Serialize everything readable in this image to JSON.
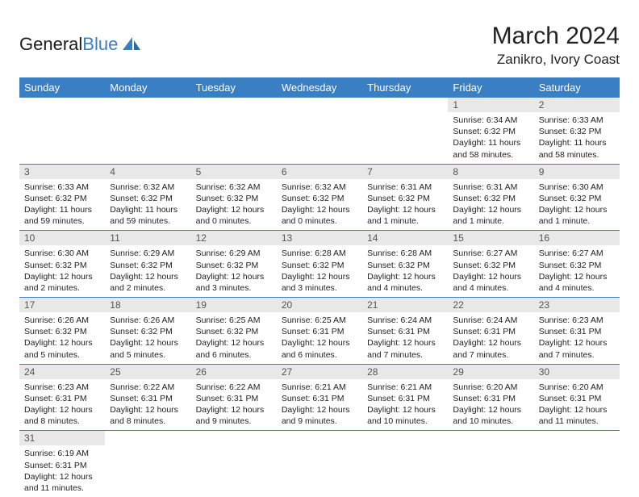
{
  "brand": {
    "part1": "General",
    "part2": "Blue"
  },
  "title": "March 2024",
  "location": "Zanikro, Ivory Coast",
  "colors": {
    "header_bg": "#3a7fc4",
    "header_text": "#ffffff",
    "daynum_bg": "#e8e8e8",
    "daynum_text": "#555555",
    "body_text": "#222222",
    "row_border": "#3a7fc4",
    "page_bg": "#ffffff"
  },
  "weekdays": [
    "Sunday",
    "Monday",
    "Tuesday",
    "Wednesday",
    "Thursday",
    "Friday",
    "Saturday"
  ],
  "first_weekday_index": 5,
  "days": [
    {
      "n": 1,
      "sr": "6:34 AM",
      "ss": "6:32 PM",
      "dl": "11 hours and 58 minutes."
    },
    {
      "n": 2,
      "sr": "6:33 AM",
      "ss": "6:32 PM",
      "dl": "11 hours and 58 minutes."
    },
    {
      "n": 3,
      "sr": "6:33 AM",
      "ss": "6:32 PM",
      "dl": "11 hours and 59 minutes."
    },
    {
      "n": 4,
      "sr": "6:32 AM",
      "ss": "6:32 PM",
      "dl": "11 hours and 59 minutes."
    },
    {
      "n": 5,
      "sr": "6:32 AM",
      "ss": "6:32 PM",
      "dl": "12 hours and 0 minutes."
    },
    {
      "n": 6,
      "sr": "6:32 AM",
      "ss": "6:32 PM",
      "dl": "12 hours and 0 minutes."
    },
    {
      "n": 7,
      "sr": "6:31 AM",
      "ss": "6:32 PM",
      "dl": "12 hours and 1 minute."
    },
    {
      "n": 8,
      "sr": "6:31 AM",
      "ss": "6:32 PM",
      "dl": "12 hours and 1 minute."
    },
    {
      "n": 9,
      "sr": "6:30 AM",
      "ss": "6:32 PM",
      "dl": "12 hours and 1 minute."
    },
    {
      "n": 10,
      "sr": "6:30 AM",
      "ss": "6:32 PM",
      "dl": "12 hours and 2 minutes."
    },
    {
      "n": 11,
      "sr": "6:29 AM",
      "ss": "6:32 PM",
      "dl": "12 hours and 2 minutes."
    },
    {
      "n": 12,
      "sr": "6:29 AM",
      "ss": "6:32 PM",
      "dl": "12 hours and 3 minutes."
    },
    {
      "n": 13,
      "sr": "6:28 AM",
      "ss": "6:32 PM",
      "dl": "12 hours and 3 minutes."
    },
    {
      "n": 14,
      "sr": "6:28 AM",
      "ss": "6:32 PM",
      "dl": "12 hours and 4 minutes."
    },
    {
      "n": 15,
      "sr": "6:27 AM",
      "ss": "6:32 PM",
      "dl": "12 hours and 4 minutes."
    },
    {
      "n": 16,
      "sr": "6:27 AM",
      "ss": "6:32 PM",
      "dl": "12 hours and 4 minutes."
    },
    {
      "n": 17,
      "sr": "6:26 AM",
      "ss": "6:32 PM",
      "dl": "12 hours and 5 minutes."
    },
    {
      "n": 18,
      "sr": "6:26 AM",
      "ss": "6:32 PM",
      "dl": "12 hours and 5 minutes."
    },
    {
      "n": 19,
      "sr": "6:25 AM",
      "ss": "6:32 PM",
      "dl": "12 hours and 6 minutes."
    },
    {
      "n": 20,
      "sr": "6:25 AM",
      "ss": "6:31 PM",
      "dl": "12 hours and 6 minutes."
    },
    {
      "n": 21,
      "sr": "6:24 AM",
      "ss": "6:31 PM",
      "dl": "12 hours and 7 minutes."
    },
    {
      "n": 22,
      "sr": "6:24 AM",
      "ss": "6:31 PM",
      "dl": "12 hours and 7 minutes."
    },
    {
      "n": 23,
      "sr": "6:23 AM",
      "ss": "6:31 PM",
      "dl": "12 hours and 7 minutes."
    },
    {
      "n": 24,
      "sr": "6:23 AM",
      "ss": "6:31 PM",
      "dl": "12 hours and 8 minutes."
    },
    {
      "n": 25,
      "sr": "6:22 AM",
      "ss": "6:31 PM",
      "dl": "12 hours and 8 minutes."
    },
    {
      "n": 26,
      "sr": "6:22 AM",
      "ss": "6:31 PM",
      "dl": "12 hours and 9 minutes."
    },
    {
      "n": 27,
      "sr": "6:21 AM",
      "ss": "6:31 PM",
      "dl": "12 hours and 9 minutes."
    },
    {
      "n": 28,
      "sr": "6:21 AM",
      "ss": "6:31 PM",
      "dl": "12 hours and 10 minutes."
    },
    {
      "n": 29,
      "sr": "6:20 AM",
      "ss": "6:31 PM",
      "dl": "12 hours and 10 minutes."
    },
    {
      "n": 30,
      "sr": "6:20 AM",
      "ss": "6:31 PM",
      "dl": "12 hours and 11 minutes."
    },
    {
      "n": 31,
      "sr": "6:19 AM",
      "ss": "6:31 PM",
      "dl": "12 hours and 11 minutes."
    }
  ],
  "labels": {
    "sunrise": "Sunrise:",
    "sunset": "Sunset:",
    "daylight": "Daylight:"
  }
}
